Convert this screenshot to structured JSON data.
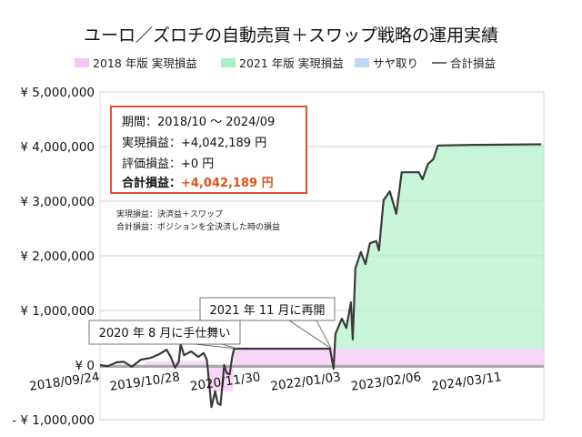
{
  "chart_data": {
    "type": "area",
    "title": "ユーロ／ズロチの自動売買＋スワップ戦略の運用実績",
    "legend": {
      "placement": "top",
      "entries": [
        {
          "label": "2018 年版 実現損益",
          "color": "#f5c6f2",
          "kind": "area"
        },
        {
          "label": "2021 年版 実現損益",
          "color": "#a8f0c6",
          "kind": "area"
        },
        {
          "label": "サヤ取り",
          "color": "#bcd9f5",
          "kind": "area"
        },
        {
          "label": "合計損益",
          "color": "#3a3a3a",
          "kind": "line"
        }
      ]
    },
    "xlim": [
      "2018-09-24",
      "2024-10-04"
    ],
    "ylim": [
      -1000000,
      5000000
    ],
    "grid": true,
    "x_ticks": [
      "2018/09/24",
      "2019/10/28",
      "2020/11/30",
      "2022/01/03",
      "2023/02/06",
      "2024/03/11"
    ],
    "y_ticks": [
      {
        "value": 5000000,
        "label": "¥ 5,000,000"
      },
      {
        "value": 4000000,
        "label": "¥ 4,000,000"
      },
      {
        "value": 3000000,
        "label": "¥ 3,000,000"
      },
      {
        "value": 2000000,
        "label": "¥ 2,000,000"
      },
      {
        "value": 1000000,
        "label": "¥ 1,000,000"
      },
      {
        "value": 0,
        "label": "¥ 0"
      },
      {
        "value": -1000000,
        "label": "- ¥ 1,000,000",
        "color": "#d0161b"
      }
    ],
    "series": [
      {
        "name": "合計損益",
        "type": "line",
        "points": [
          [
            "2018-09-24",
            0
          ],
          [
            "2018-11-01",
            -20000
          ],
          [
            "2018-12-15",
            50000
          ],
          [
            "2019-01-20",
            60000
          ],
          [
            "2019-03-01",
            -30000
          ],
          [
            "2019-04-15",
            100000
          ],
          [
            "2019-06-01",
            130000
          ],
          [
            "2019-07-15",
            200000
          ],
          [
            "2019-08-20",
            280000
          ],
          [
            "2019-09-10",
            150000
          ],
          [
            "2019-10-01",
            -50000
          ],
          [
            "2019-10-20",
            60000
          ],
          [
            "2019-10-29",
            380000
          ],
          [
            "2019-11-15",
            180000
          ],
          [
            "2019-12-20",
            250000
          ],
          [
            "2020-01-25",
            150000
          ],
          [
            "2020-02-20",
            220000
          ],
          [
            "2020-03-07",
            100000
          ],
          [
            "2020-03-30",
            -770000
          ],
          [
            "2020-04-17",
            -480000
          ],
          [
            "2020-04-30",
            -700000
          ],
          [
            "2020-05-14",
            -730000
          ],
          [
            "2020-06-01",
            0
          ],
          [
            "2020-06-14",
            -150000
          ],
          [
            "2020-06-28",
            -170000
          ],
          [
            "2020-07-11",
            150000
          ],
          [
            "2020-07-20",
            300000
          ],
          [
            "2021-11-08",
            300000
          ],
          [
            "2021-11-26",
            -70000
          ],
          [
            "2021-12-05",
            570000
          ],
          [
            "2022-01-06",
            850000
          ],
          [
            "2022-01-28",
            680000
          ],
          [
            "2022-02-20",
            1150000
          ],
          [
            "2022-03-01",
            470000
          ],
          [
            "2022-03-14",
            1770000
          ],
          [
            "2022-04-10",
            2070000
          ],
          [
            "2022-05-03",
            1850000
          ],
          [
            "2022-05-25",
            2230000
          ],
          [
            "2022-06-26",
            2270000
          ],
          [
            "2022-07-09",
            2100000
          ],
          [
            "2022-08-01",
            3020000
          ],
          [
            "2022-09-01",
            3180000
          ],
          [
            "2022-10-03",
            2770000
          ],
          [
            "2022-10-30",
            3530000
          ],
          [
            "2023-01-23",
            3530000
          ],
          [
            "2023-02-10",
            3400000
          ],
          [
            "2023-03-09",
            3680000
          ],
          [
            "2023-04-05",
            3770000
          ],
          [
            "2023-04-27",
            4020000
          ],
          [
            "2023-10-01",
            4030000
          ],
          [
            "2024-09-21",
            4042189
          ]
        ]
      },
      {
        "name": "2018 年版 実現損益",
        "type": "area",
        "points": [
          [
            "2019-05-01",
            0
          ],
          [
            "2019-05-10",
            70000
          ],
          [
            "2020-03-07",
            80000
          ],
          [
            "2020-03-20",
            -480000
          ],
          [
            "2020-07-15",
            -480000
          ],
          [
            "2020-07-20",
            300000
          ],
          [
            "2024-10-04",
            300000
          ]
        ]
      },
      {
        "name": "2021 年版 実現損益",
        "type": "area",
        "base": 300000,
        "from": "2021-11-26"
      }
    ],
    "annotations": [
      {
        "text": "2020 年 8 月に手仕舞い",
        "date": "2020-08-07",
        "value": 300000
      },
      {
        "text": "2021 年 11 月に再開",
        "date": "2021-11-15",
        "value": 300000
      }
    ]
  },
  "summary": {
    "period_label": "期間：",
    "period_value": "2018/10 ～ 2024/09",
    "realized_label": "実現損益：",
    "realized_value": "+4,042,189 円",
    "unrealized_label": "評価損益：",
    "unrealized_value": "+0 円",
    "total_label": "合計損益：",
    "total_value": "+4,042,189 円",
    "total_color": "#e4501e",
    "border_color": "#e0502a"
  },
  "notes": [
    "実現損益：決済益＋スワップ",
    "合計損益：ポジションを全決済した時の損益"
  ]
}
